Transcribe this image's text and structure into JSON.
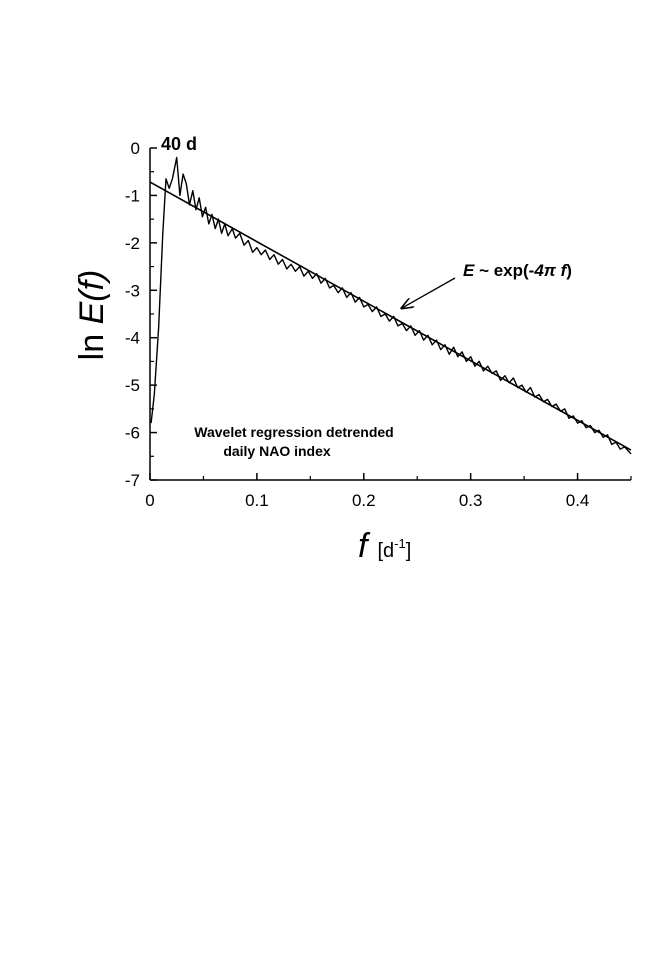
{
  "chart_data": {
    "type": "line",
    "xlabel": {
      "main": "f",
      "unit_open": "[d",
      "unit_exp": "-1",
      "unit_close": "]"
    },
    "ylabel": {
      "prefix": "ln ",
      "main": "E(f)"
    },
    "xlim": [
      0,
      0.45
    ],
    "ylim": [
      -7,
      0
    ],
    "x_ticks": [
      0,
      0.1,
      0.2,
      0.3,
      0.4
    ],
    "x_tick_labels": [
      "0",
      "0.1",
      "0.2",
      "0.3",
      "0.4"
    ],
    "y_ticks": [
      0,
      -1,
      -2,
      -3,
      -4,
      -5,
      -6,
      -7
    ],
    "y_tick_labels": [
      "0",
      "-1",
      "-2",
      "-3",
      "-4",
      "-5",
      "-6",
      "-7"
    ],
    "grid": false,
    "series": [
      {
        "style": "spectrum",
        "x": [
          0.001,
          0.004,
          0.008,
          0.012,
          0.015,
          0.018,
          0.021,
          0.025,
          0.028,
          0.031,
          0.034,
          0.037,
          0.04,
          0.043,
          0.046,
          0.049,
          0.052,
          0.055,
          0.058,
          0.061,
          0.064,
          0.067,
          0.07,
          0.073,
          0.077,
          0.08,
          0.084,
          0.088,
          0.092,
          0.096,
          0.1,
          0.104,
          0.108,
          0.112,
          0.116,
          0.12,
          0.124,
          0.128,
          0.132,
          0.136,
          0.14,
          0.144,
          0.148,
          0.152,
          0.156,
          0.16,
          0.164,
          0.168,
          0.172,
          0.176,
          0.18,
          0.184,
          0.188,
          0.192,
          0.196,
          0.2,
          0.204,
          0.208,
          0.212,
          0.216,
          0.22,
          0.224,
          0.228,
          0.232,
          0.236,
          0.24,
          0.244,
          0.248,
          0.252,
          0.256,
          0.26,
          0.264,
          0.268,
          0.272,
          0.276,
          0.28,
          0.284,
          0.288,
          0.292,
          0.296,
          0.3,
          0.304,
          0.308,
          0.312,
          0.316,
          0.32,
          0.324,
          0.328,
          0.332,
          0.336,
          0.34,
          0.344,
          0.348,
          0.352,
          0.356,
          0.36,
          0.364,
          0.368,
          0.372,
          0.376,
          0.38,
          0.384,
          0.388,
          0.392,
          0.396,
          0.4,
          0.404,
          0.408,
          0.412,
          0.416,
          0.42,
          0.424,
          0.428,
          0.432,
          0.436,
          0.44,
          0.444,
          0.45
        ],
        "y": [
          -5.8,
          -5.2,
          -3.8,
          -1.8,
          -0.65,
          -0.85,
          -0.65,
          -0.2,
          -1.0,
          -0.55,
          -0.75,
          -1.2,
          -0.9,
          -1.3,
          -1.05,
          -1.45,
          -1.25,
          -1.6,
          -1.4,
          -1.7,
          -1.5,
          -1.8,
          -1.6,
          -1.85,
          -1.7,
          -1.9,
          -1.8,
          -2.05,
          -1.95,
          -2.2,
          -2.1,
          -2.25,
          -2.15,
          -2.35,
          -2.25,
          -2.45,
          -2.35,
          -2.55,
          -2.45,
          -2.6,
          -2.5,
          -2.7,
          -2.6,
          -2.75,
          -2.65,
          -2.85,
          -2.75,
          -2.95,
          -2.9,
          -3.05,
          -2.95,
          -3.15,
          -3.05,
          -3.25,
          -3.15,
          -3.35,
          -3.3,
          -3.45,
          -3.35,
          -3.55,
          -3.5,
          -3.65,
          -3.55,
          -3.75,
          -3.7,
          -3.85,
          -3.75,
          -3.95,
          -3.85,
          -4.05,
          -3.95,
          -4.15,
          -4.05,
          -4.25,
          -4.15,
          -4.35,
          -4.2,
          -4.4,
          -4.3,
          -4.5,
          -4.4,
          -4.6,
          -4.5,
          -4.7,
          -4.6,
          -4.75,
          -4.7,
          -4.9,
          -4.8,
          -4.95,
          -4.85,
          -5.05,
          -5.0,
          -5.15,
          -5.05,
          -5.25,
          -5.2,
          -5.35,
          -5.3,
          -5.45,
          -5.4,
          -5.55,
          -5.5,
          -5.7,
          -5.65,
          -5.8,
          -5.75,
          -5.9,
          -5.85,
          -6.0,
          -5.95,
          -6.1,
          -6.05,
          -6.25,
          -6.2,
          -6.35,
          -6.3,
          -6.45
        ]
      },
      {
        "style": "fit",
        "x": [
          0,
          0.45
        ],
        "y": [
          -0.72,
          -6.37
        ]
      }
    ],
    "annotations": [
      {
        "text": "40 d",
        "x": 0.025,
        "y": -0.2
      },
      {
        "prefix": "E",
        "text": " ~ exp(-",
        "mid": "4π f",
        "suffix": ")",
        "arrow_to": [
          0.228,
          -3.42
        ]
      },
      {
        "line1": "Wavelet regression detrended",
        "line2": "daily NAO index"
      }
    ]
  }
}
